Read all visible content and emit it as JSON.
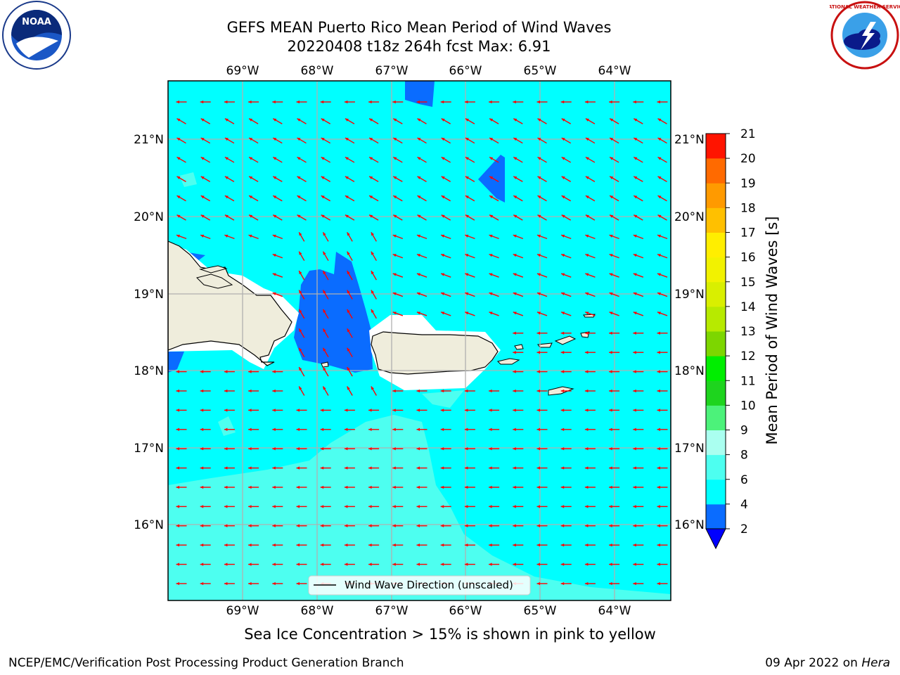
{
  "header": {
    "title_line1": "GEFS MEAN Puerto Rico Mean Period of Wind Waves",
    "title_line2": "20220408 t18z 264h fcst   Max: 6.91"
  },
  "logos": {
    "left_text": "NOAA",
    "right_text": "NATIONAL WEATHER SERVICE"
  },
  "map": {
    "lon_labels": [
      "69°W",
      "68°W",
      "67°W",
      "66°W",
      "65°W",
      "64°W"
    ],
    "lat_labels": [
      "21°N",
      "20°N",
      "19°N",
      "18°N",
      "17°N",
      "16°N"
    ],
    "ocean_color": "#00ffff",
    "land_color": "#efeddc",
    "arrow_color": "#ff0000",
    "grid_color": "#b0b0b0",
    "legend_label": "Wind Wave Direction (unscaled)"
  },
  "colorbar": {
    "label": "Mean Period of Wind Waves [s]",
    "ticks": [
      "2",
      "4",
      "6",
      "8",
      "9",
      "10",
      "11",
      "12",
      "13",
      "14",
      "15",
      "16",
      "17",
      "18",
      "19",
      "20",
      "21"
    ],
    "colors": [
      "#0a6cff",
      "#00ffff",
      "#4dfff0",
      "#aafff0",
      "#4cf27a",
      "#1ed41e",
      "#00ee00",
      "#7dd600",
      "#b7ea00",
      "#d9ef00",
      "#f2f200",
      "#ffee00",
      "#ffc000",
      "#ff9a00",
      "#ff6a00",
      "#ff3c00",
      "#ff1400"
    ],
    "extend_color": "#0000ff"
  },
  "footer": {
    "subtitle": "Sea Ice Concentration > 15% is shown in pink to yellow",
    "left": "NCEP/EMC/Verification Post Processing Product Generation Branch",
    "right_prefix": "09 Apr 2022 on ",
    "right_italic": "Hera"
  }
}
